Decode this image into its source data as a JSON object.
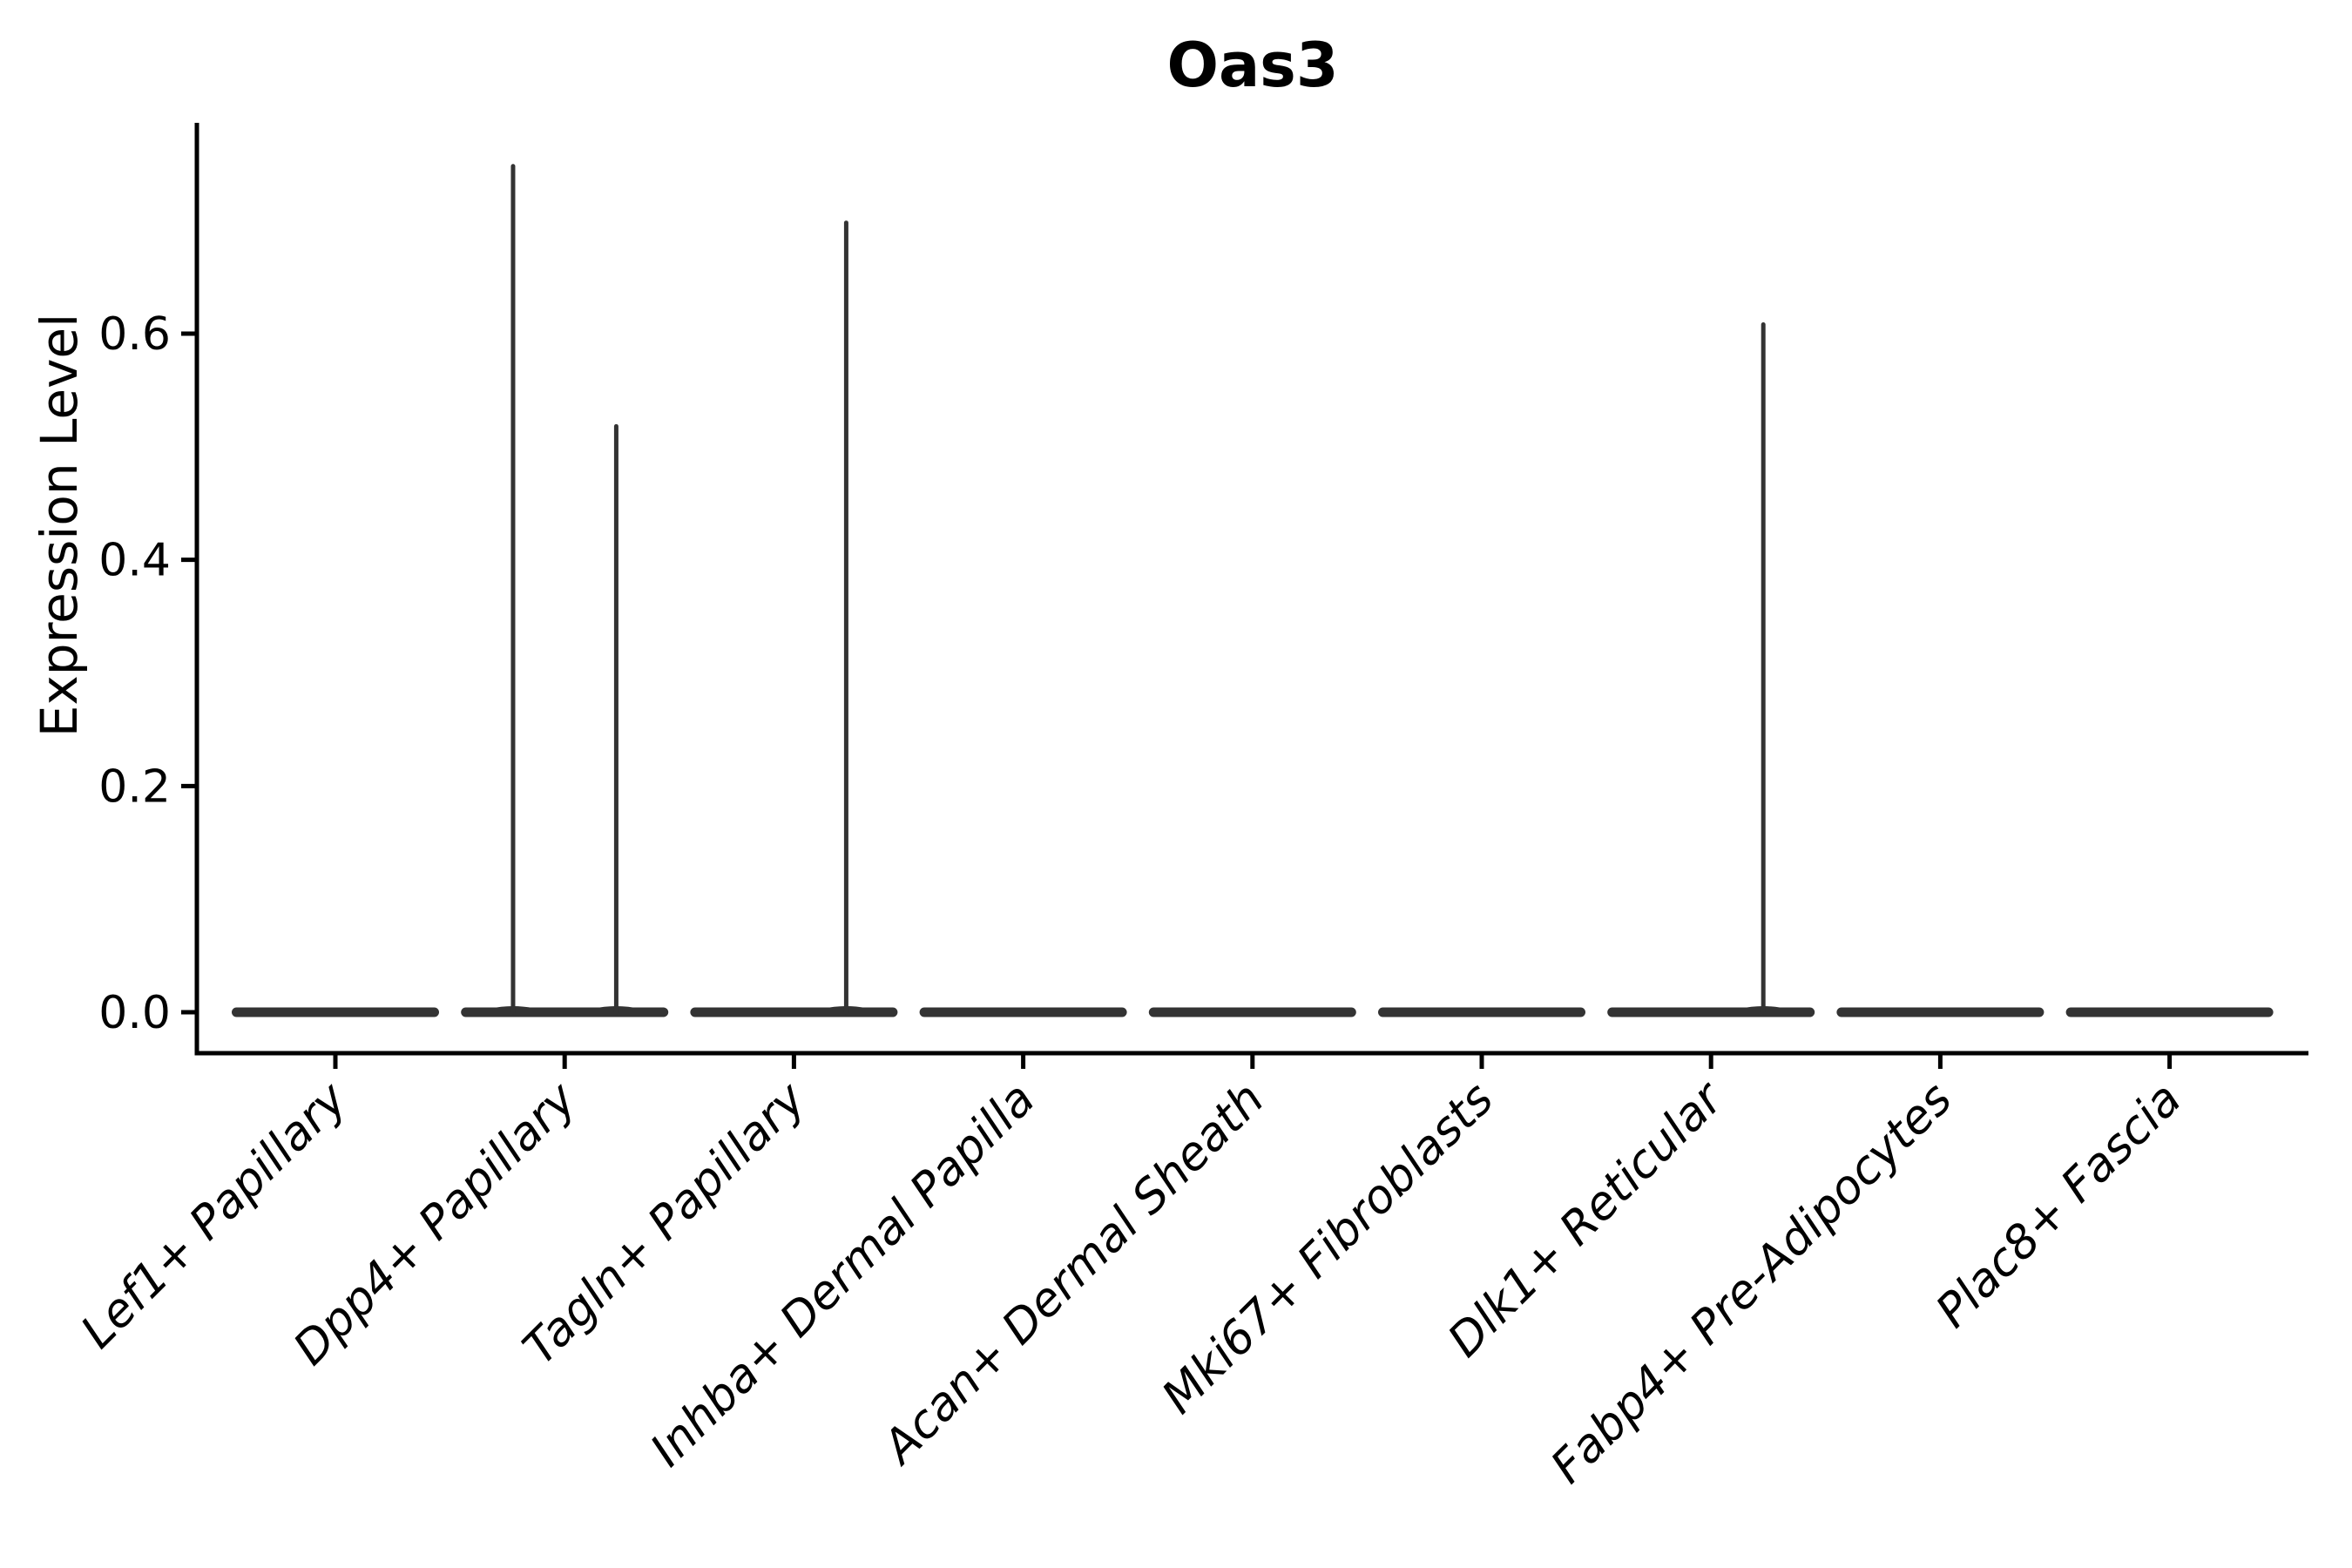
{
  "chart_data": {
    "type": "violin",
    "title": "Oas3",
    "xlabel": "",
    "ylabel": "Expression Level",
    "categories": [
      "Lef1+ Papillary",
      "Dpp4+ Papillary",
      "Tagln+ Papillary",
      "Inhba+ Dermal Papilla",
      "Acan+ Dermal Sheath",
      "Mki67+ Fibroblasts",
      "Dlk1+ Reticular",
      "Fabp4+ Pre-Adipocytes",
      "Plac8+ Fascia"
    ],
    "y_ticks": [
      0.0,
      0.2,
      0.4,
      0.6
    ],
    "y_tick_labels": [
      "0.0",
      "0.2",
      "0.4",
      "0.6"
    ],
    "ylim": [
      -0.0375,
      0.7875
    ],
    "grid": false,
    "legend_position": "none",
    "x_tick_rotation_deg": 45,
    "x_tick_font_style": "italic",
    "violins": [
      {
        "category": "Lef1+ Papillary",
        "baseline_value": 0.0,
        "max_expression": 0.0,
        "spikes": []
      },
      {
        "category": "Dpp4+ Papillary",
        "baseline_value": 0.0,
        "max_expression": 0.75,
        "spikes": [
          {
            "offset_frac": -0.225,
            "value": 0.75
          },
          {
            "offset_frac": 0.225,
            "value": 0.52
          }
        ]
      },
      {
        "category": "Tagln+ Papillary",
        "baseline_value": 0.0,
        "max_expression": 0.7,
        "spikes": [
          {
            "offset_frac": 0.228,
            "value": 0.7
          }
        ]
      },
      {
        "category": "Inhba+ Dermal Papilla",
        "baseline_value": 0.0,
        "max_expression": 0.0,
        "spikes": []
      },
      {
        "category": "Acan+ Dermal Sheath",
        "baseline_value": 0.0,
        "max_expression": 0.0,
        "spikes": []
      },
      {
        "category": "Mki67+ Fibroblasts",
        "baseline_value": 0.0,
        "max_expression": 0.0,
        "spikes": []
      },
      {
        "category": "Dlk1+ Reticular",
        "baseline_value": 0.0,
        "max_expression": 0.61,
        "spikes": [
          {
            "offset_frac": 0.228,
            "value": 0.61
          }
        ]
      },
      {
        "category": "Fabp4+ Pre-Adipocytes",
        "baseline_value": 0.0,
        "max_expression": 0.0,
        "spikes": []
      },
      {
        "category": "Plac8+ Fascia",
        "baseline_value": 0.0,
        "max_expression": 0.0,
        "spikes": []
      }
    ],
    "colors": {
      "violin_fill": "#333333",
      "axis": "#000000",
      "text": "#000000",
      "background": "#ffffff"
    }
  }
}
